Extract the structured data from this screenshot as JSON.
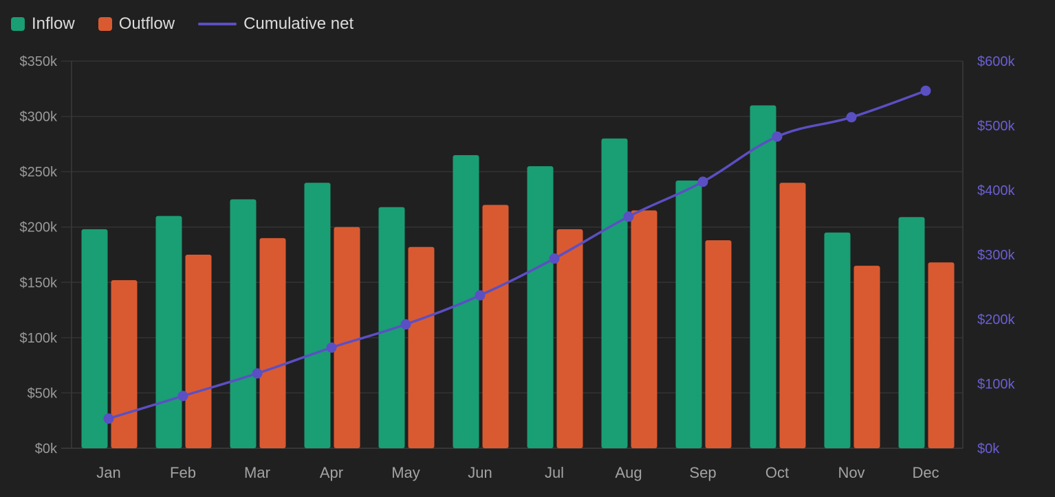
{
  "chart_data": {
    "type": "bar",
    "categories": [
      "Jan",
      "Feb",
      "Mar",
      "Apr",
      "May",
      "Jun",
      "Jul",
      "Aug",
      "Sep",
      "Oct",
      "Nov",
      "Dec"
    ],
    "series": [
      {
        "name": "Inflow",
        "kind": "bar",
        "axis": "left",
        "color": "#1a9e74",
        "values": [
          198000,
          210000,
          225000,
          240000,
          218000,
          265000,
          255000,
          280000,
          242000,
          310000,
          195000,
          209000
        ]
      },
      {
        "name": "Outflow",
        "kind": "bar",
        "axis": "left",
        "color": "#d95a31",
        "values": [
          152000,
          175000,
          190000,
          200000,
          182000,
          220000,
          198000,
          215000,
          188000,
          240000,
          165000,
          168000
        ]
      },
      {
        "name": "Cumulative net",
        "kind": "line",
        "axis": "right",
        "color": "#5b4fc4",
        "values": [
          46000,
          81000,
          116000,
          156000,
          192000,
          237000,
          294000,
          359000,
          413000,
          483000,
          513000,
          554000
        ]
      }
    ],
    "left_axis": {
      "ylim": [
        0,
        350000
      ],
      "ticks": [
        0,
        50000,
        100000,
        150000,
        200000,
        250000,
        300000,
        350000
      ],
      "tick_labels": [
        "$0k",
        "$50k",
        "$100k",
        "$150k",
        "$200k",
        "$250k",
        "$300k",
        "$350k"
      ]
    },
    "right_axis": {
      "ylim": [
        0,
        600000
      ],
      "ticks": [
        0,
        100000,
        200000,
        300000,
        400000,
        500000,
        600000
      ],
      "tick_labels": [
        "$0k",
        "$100k",
        "$200k",
        "$300k",
        "$400k",
        "$500k",
        "$600k"
      ],
      "color": "#6a5fd3"
    },
    "grid": true,
    "legend_position": "top-left",
    "title": "",
    "xlabel": "",
    "ylabel": ""
  },
  "colors": {
    "background": "#202020",
    "grid": "#333333",
    "axis_line": "#3a3a3a",
    "left_tick_text": "#9a9a9a",
    "x_tick_text": "#a3a3a3"
  }
}
